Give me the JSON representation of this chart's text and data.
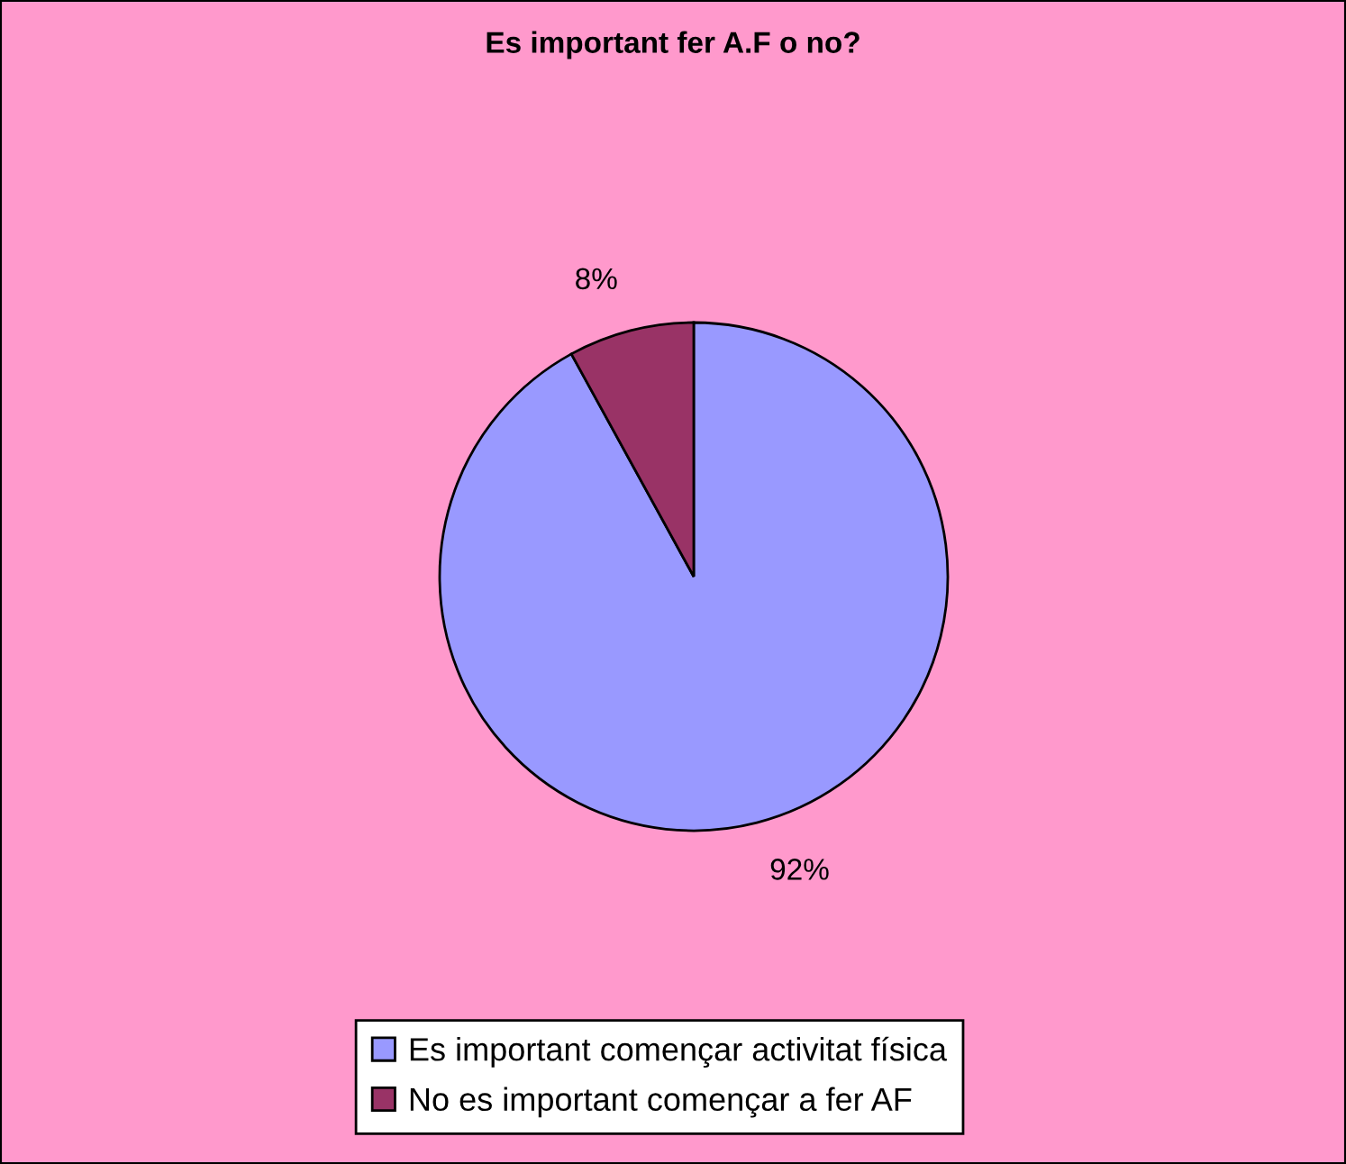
{
  "chart_data": {
    "type": "pie",
    "title": "Es important fer A.F o no?",
    "categories": [
      "Es important començar activitat física",
      "No es important començar a fer AF"
    ],
    "values": [
      92,
      8
    ],
    "colors": [
      "#9999ff",
      "#993366"
    ],
    "value_labels": [
      "92%",
      "8%"
    ],
    "legend": "bottom"
  }
}
